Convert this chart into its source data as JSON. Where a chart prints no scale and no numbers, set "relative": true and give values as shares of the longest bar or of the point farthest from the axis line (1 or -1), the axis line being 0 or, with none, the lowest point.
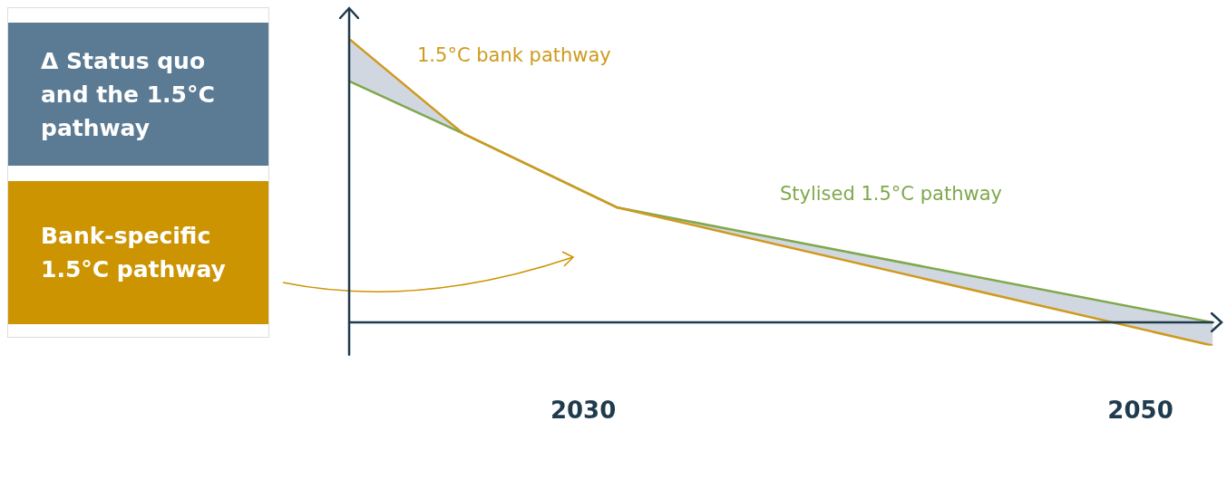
{
  "chart_data": {
    "type": "line",
    "relative": true,
    "x": [
      2021.6,
      2025.7,
      2031.2,
      2052.6
    ],
    "xlim": [
      2021.6,
      2052.6
    ],
    "xticks": [
      2030,
      2050
    ],
    "series": [
      {
        "name": "1.5°C bank pathway",
        "color": "#cf9a1e",
        "values": [
          1,
          0.666,
          0.406,
          -0.082
        ]
      },
      {
        "name": "Stylised 1.5°C pathway",
        "color": "#80a84c",
        "values": [
          0.851,
          0.666,
          0.406,
          0
        ]
      }
    ],
    "annotations": [
      "Δ Status quo and the 1.5°C pathway",
      "Bank-specific 1.5°C pathway"
    ],
    "grid": false,
    "legend": false,
    "marker": "none",
    "line_style": "solid"
  }
}
